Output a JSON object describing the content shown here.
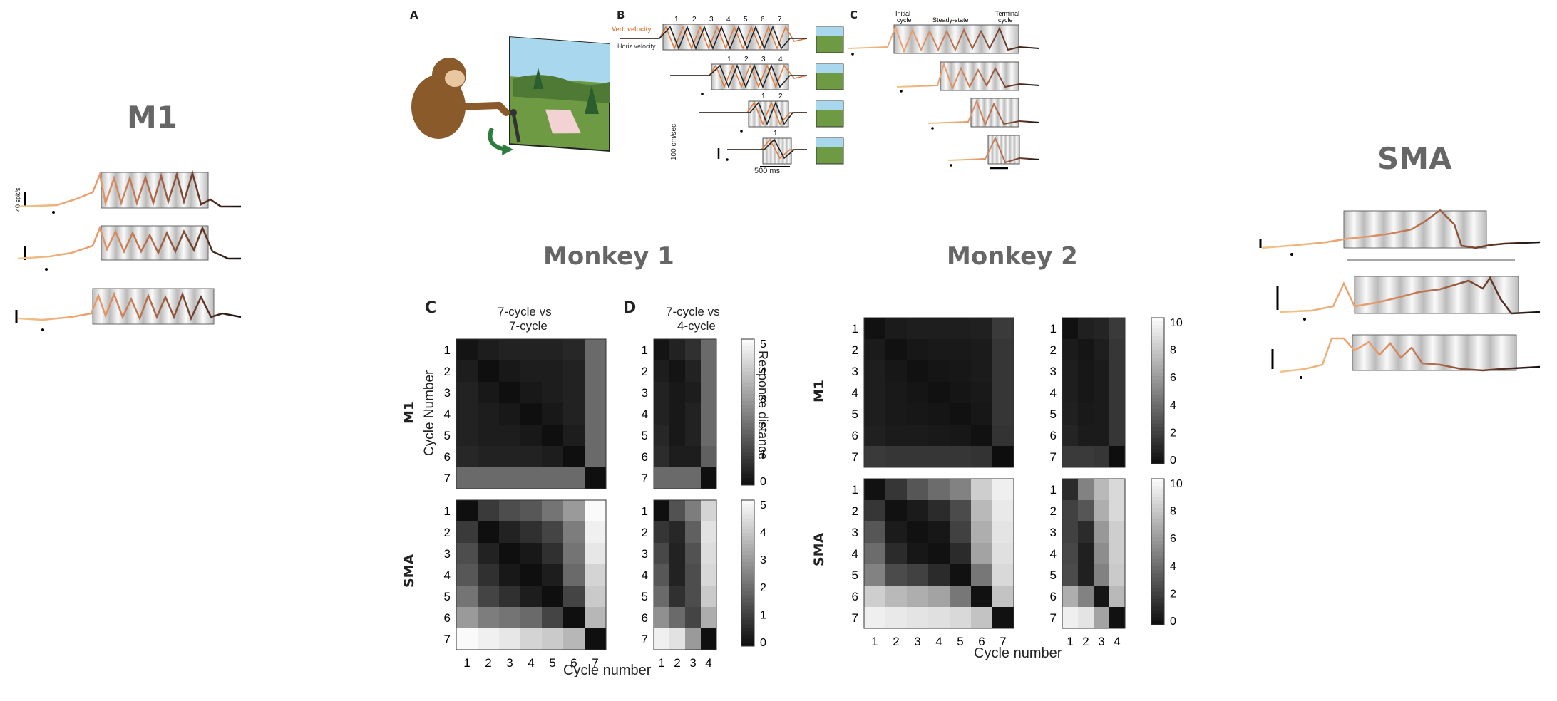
{
  "titles": {
    "m1": "M1",
    "sma": "SMA",
    "monkey1": "Monkey 1",
    "monkey2": "Monkey 2"
  },
  "left_panel": {
    "scale_label": "40 spk/s"
  },
  "task_figure": {
    "letter_a": "A",
    "letter_b": "B",
    "letter_c": "C",
    "vert_label": "Vert. velocity",
    "horiz_label": "Horiz.velocity",
    "speed_scale": "100 cm/sec",
    "time_scale": "500 ms",
    "cycle_numbers_7": [
      "1",
      "2",
      "3",
      "4",
      "5",
      "6",
      "7"
    ],
    "cycle_numbers_4": [
      "1",
      "2",
      "3",
      "4"
    ],
    "cycle_numbers_2": [
      "1",
      "2"
    ],
    "cycle_numbers_1": [
      "1"
    ],
    "phase_initial": "Initial\ncycle",
    "phase_initial_l1": "Initial",
    "phase_initial_l2": "cycle",
    "phase_steady": "Steady-state",
    "phase_terminal_l1": "Terminal",
    "phase_terminal_l2": "cycle"
  },
  "matrix_panel": {
    "letter_c": "C",
    "letter_d": "D",
    "c_title_l1": "7-cycle vs",
    "c_title_l2": "7-cycle",
    "d_title_l1": "7-cycle vs",
    "d_title_l2": "4-cycle",
    "row_m1": "M1",
    "row_sma": "SMA",
    "ylabel": "Cycle Number",
    "xlabel": "Cycle number",
    "colorbar_label": "Response distance",
    "cbar_ticks_m1": [
      "5",
      "4",
      "3",
      "2",
      "1",
      "0"
    ],
    "cbar_ticks_m2": [
      "10",
      "8",
      "6",
      "4",
      "2",
      "0"
    ]
  },
  "chart_data": [
    {
      "type": "heatmap",
      "title": "7-cycle vs 7-cycle",
      "row": "M1",
      "monkey": "Monkey 1",
      "x": [
        1,
        2,
        3,
        4,
        5,
        6,
        7
      ],
      "y": [
        1,
        2,
        3,
        4,
        5,
        6,
        7
      ],
      "values": [
        [
          0.2,
          0.4,
          0.5,
          0.5,
          0.5,
          0.6,
          2.0
        ],
        [
          0.4,
          0.1,
          0.3,
          0.4,
          0.4,
          0.5,
          2.0
        ],
        [
          0.5,
          0.3,
          0.1,
          0.3,
          0.4,
          0.5,
          2.0
        ],
        [
          0.5,
          0.4,
          0.3,
          0.1,
          0.3,
          0.5,
          2.0
        ],
        [
          0.5,
          0.4,
          0.4,
          0.3,
          0.1,
          0.4,
          2.0
        ],
        [
          0.6,
          0.5,
          0.5,
          0.5,
          0.4,
          0.1,
          2.0
        ],
        [
          2.0,
          2.0,
          2.0,
          2.0,
          2.0,
          2.0,
          0.1
        ]
      ],
      "zlim": [
        0,
        5
      ],
      "colorbar": "Response distance"
    },
    {
      "type": "heatmap",
      "title": "7-cycle vs 4-cycle",
      "row": "M1",
      "monkey": "Monkey 1",
      "x": [
        1,
        2,
        3,
        4
      ],
      "y": [
        1,
        2,
        3,
        4,
        5,
        6,
        7
      ],
      "values": [
        [
          0.2,
          0.5,
          0.8,
          2.0
        ],
        [
          0.4,
          0.2,
          0.5,
          2.0
        ],
        [
          0.5,
          0.3,
          0.4,
          2.0
        ],
        [
          0.5,
          0.3,
          0.5,
          2.0
        ],
        [
          0.6,
          0.3,
          0.5,
          2.0
        ],
        [
          0.7,
          0.4,
          0.4,
          1.8
        ],
        [
          2.0,
          2.0,
          2.0,
          0.1
        ]
      ],
      "zlim": [
        0,
        5
      ],
      "colorbar": "Response distance"
    },
    {
      "type": "heatmap",
      "title": "7-cycle vs 7-cycle",
      "row": "SMA",
      "monkey": "Monkey 1",
      "x": [
        1,
        2,
        3,
        4,
        5,
        6,
        7
      ],
      "y": [
        1,
        2,
        3,
        4,
        5,
        6,
        7
      ],
      "values": [
        [
          0.1,
          1.0,
          1.4,
          1.6,
          2.2,
          3.0,
          5.0
        ],
        [
          1.0,
          0.1,
          0.5,
          0.8,
          1.2,
          2.4,
          4.8
        ],
        [
          1.4,
          0.5,
          0.1,
          0.3,
          0.8,
          2.2,
          4.6
        ],
        [
          1.6,
          0.8,
          0.3,
          0.1,
          0.4,
          2.0,
          4.2
        ],
        [
          2.2,
          1.2,
          0.8,
          0.4,
          0.1,
          1.2,
          4.0
        ],
        [
          3.0,
          2.4,
          2.2,
          2.0,
          1.2,
          0.1,
          3.6
        ],
        [
          5.0,
          4.8,
          4.6,
          4.2,
          4.0,
          3.6,
          0.1
        ]
      ],
      "zlim": [
        0,
        5
      ],
      "colorbar": "Response distance"
    },
    {
      "type": "heatmap",
      "title": "7-cycle vs 4-cycle",
      "row": "SMA",
      "monkey": "Monkey 1",
      "x": [
        1,
        2,
        3,
        4
      ],
      "y": [
        1,
        2,
        3,
        4,
        5,
        6,
        7
      ],
      "values": [
        [
          0.1,
          1.5,
          2.4,
          4.2
        ],
        [
          0.9,
          0.6,
          1.8,
          4.5
        ],
        [
          1.3,
          0.5,
          1.5,
          4.4
        ],
        [
          1.6,
          0.5,
          1.4,
          4.3
        ],
        [
          2.0,
          0.8,
          1.4,
          4.0
        ],
        [
          2.8,
          2.0,
          1.2,
          3.4
        ],
        [
          4.8,
          4.5,
          3.0,
          0.1
        ]
      ],
      "zlim": [
        0,
        5
      ],
      "colorbar": "Response distance"
    },
    {
      "type": "heatmap",
      "row": "M1",
      "monkey": "Monkey 2",
      "x": [
        1,
        2,
        3,
        4,
        5,
        6,
        7
      ],
      "y": [
        1,
        2,
        3,
        4,
        5,
        6,
        7
      ],
      "values": [
        [
          0.3,
          0.8,
          0.9,
          0.9,
          0.9,
          1.0,
          2.2
        ],
        [
          0.8,
          0.3,
          0.6,
          0.7,
          0.7,
          0.8,
          2.0
        ],
        [
          0.9,
          0.6,
          0.3,
          0.5,
          0.6,
          0.8,
          2.0
        ],
        [
          0.9,
          0.7,
          0.5,
          0.3,
          0.5,
          0.7,
          2.0
        ],
        [
          0.9,
          0.7,
          0.6,
          0.5,
          0.3,
          0.6,
          2.0
        ],
        [
          1.0,
          0.8,
          0.8,
          0.7,
          0.6,
          0.3,
          1.9
        ],
        [
          2.2,
          2.0,
          2.0,
          2.0,
          2.0,
          1.9,
          0.2
        ]
      ],
      "zlim": [
        0,
        11
      ]
    },
    {
      "type": "heatmap",
      "row": "M1",
      "monkey": "Monkey 2",
      "x": [
        1,
        2,
        3,
        4
      ],
      "y": [
        1,
        2,
        3,
        4,
        5,
        6,
        7
      ],
      "values": [
        [
          0.3,
          1.0,
          1.2,
          2.2
        ],
        [
          0.8,
          0.5,
          0.9,
          2.0
        ],
        [
          0.9,
          0.6,
          0.8,
          2.0
        ],
        [
          0.9,
          0.6,
          0.8,
          2.0
        ],
        [
          1.0,
          0.7,
          0.8,
          2.0
        ],
        [
          1.2,
          0.8,
          0.8,
          2.0
        ],
        [
          2.2,
          2.2,
          2.0,
          0.2
        ]
      ],
      "zlim": [
        0,
        11
      ]
    },
    {
      "type": "heatmap",
      "row": "SMA",
      "monkey": "Monkey 2",
      "x": [
        1,
        2,
        3,
        4,
        5,
        6,
        7
      ],
      "y": [
        1,
        2,
        3,
        4,
        5,
        6,
        7
      ],
      "values": [
        [
          0.3,
          2.0,
          3.5,
          4.5,
          5.5,
          9.0,
          10.5
        ],
        [
          2.0,
          0.3,
          0.8,
          1.5,
          3.0,
          8.0,
          10.2
        ],
        [
          3.5,
          0.8,
          0.3,
          0.6,
          2.5,
          7.5,
          10.0
        ],
        [
          4.5,
          1.5,
          0.6,
          0.3,
          1.5,
          7.0,
          9.8
        ],
        [
          5.5,
          3.0,
          2.5,
          1.5,
          0.3,
          5.0,
          9.5
        ],
        [
          9.0,
          8.0,
          7.5,
          7.0,
          5.0,
          0.3,
          8.5
        ],
        [
          10.5,
          10.2,
          10.0,
          9.8,
          9.5,
          8.5,
          0.3
        ]
      ],
      "zlim": [
        0,
        11
      ]
    },
    {
      "type": "heatmap",
      "row": "SMA",
      "monkey": "Monkey 2",
      "x": [
        1,
        2,
        3,
        4
      ],
      "y": [
        1,
        2,
        3,
        4,
        5,
        6,
        7
      ],
      "values": [
        [
          1.5,
          5.5,
          8.0,
          9.5
        ],
        [
          2.5,
          3.5,
          7.5,
          9.5
        ],
        [
          2.5,
          1.5,
          6.5,
          9.0
        ],
        [
          2.8,
          1.0,
          6.0,
          9.0
        ],
        [
          3.0,
          1.0,
          5.5,
          8.8
        ],
        [
          7.5,
          5.5,
          0.5,
          8.0
        ],
        [
          10.5,
          10.0,
          7.0,
          0.3
        ]
      ],
      "zlim": [
        0,
        11
      ]
    }
  ]
}
